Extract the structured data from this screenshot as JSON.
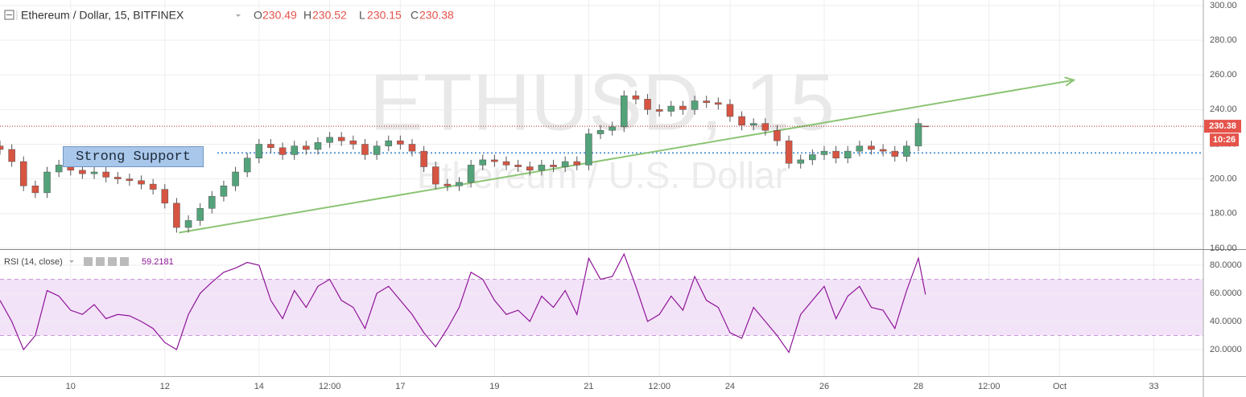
{
  "chart_data": {
    "type": "candlestick",
    "title": "Ethereum / Dollar, 15, BITFINEX",
    "watermark": "ETHUSD, 15",
    "watermark_subtitle": "Ethereum / U.S. Dollar",
    "ohlc_labels": [
      "O",
      "H",
      "L",
      "C"
    ],
    "x": [
      8.5,
      8.75,
      9,
      9.25,
      9.5,
      9.75,
      10,
      10.25,
      10.5,
      10.75,
      11,
      11.25,
      11.5,
      11.75,
      12,
      12.25,
      12.5,
      12.75,
      13,
      13.25,
      13.5,
      13.75,
      14,
      14.25,
      14.5,
      14.75,
      15,
      15.25,
      15.5,
      15.75,
      16,
      16.25,
      16.5,
      16.75,
      17,
      17.25,
      17.5,
      17.75,
      18,
      18.25,
      18.5,
      18.75,
      19,
      19.25,
      19.5,
      19.75,
      20,
      20.25,
      20.5,
      20.75,
      21,
      21.25,
      21.5,
      21.75,
      22,
      22.25,
      22.5,
      22.75,
      23,
      23.25,
      23.5,
      23.75,
      24,
      24.25,
      24.5,
      24.75,
      25,
      25.25,
      25.5,
      25.75,
      26,
      26.25,
      26.5,
      26.75,
      27,
      27.25,
      27.5,
      27.75,
      28,
      28.15
    ],
    "open": [
      219,
      217,
      210,
      196,
      192,
      204,
      208,
      205,
      203,
      204,
      201,
      200,
      199,
      197,
      194,
      186,
      172,
      176,
      183,
      190,
      196,
      204,
      212,
      220,
      218,
      214,
      219,
      217,
      221,
      224,
      222,
      220,
      214,
      219,
      222,
      220,
      216,
      207,
      197,
      196,
      198,
      208,
      211,
      210,
      208,
      207,
      205,
      208,
      207,
      210,
      208,
      226,
      228,
      230,
      248,
      246,
      240,
      239,
      242,
      240,
      245,
      244,
      243,
      236,
      231,
      232,
      228,
      222,
      209,
      211,
      214,
      216,
      212,
      216,
      219,
      217,
      216,
      213,
      219,
      230.49
    ],
    "high": [
      222,
      220,
      213,
      199,
      207,
      211,
      211,
      208,
      207,
      207,
      204,
      203,
      202,
      200,
      197,
      189,
      179,
      186,
      193,
      199,
      207,
      215,
      223,
      223,
      221,
      222,
      222,
      224,
      227,
      227,
      225,
      223,
      222,
      225,
      225,
      223,
      219,
      210,
      200,
      201,
      211,
      214,
      214,
      213,
      211,
      210,
      211,
      211,
      213,
      213,
      229,
      231,
      233,
      251,
      251,
      249,
      243,
      245,
      245,
      248,
      248,
      247,
      246,
      239,
      235,
      235,
      231,
      225,
      214,
      217,
      219,
      219,
      219,
      222,
      222,
      220,
      219,
      222,
      235,
      230.52
    ],
    "low": [
      214,
      207,
      193,
      189,
      189,
      201,
      202,
      200,
      200,
      198,
      197,
      196,
      194,
      191,
      183,
      169,
      169,
      173,
      180,
      187,
      193,
      201,
      209,
      215,
      211,
      211,
      214,
      214,
      218,
      219,
      217,
      211,
      211,
      216,
      217,
      213,
      204,
      194,
      193,
      193,
      195,
      205,
      207,
      205,
      204,
      202,
      202,
      204,
      204,
      205,
      205,
      223,
      225,
      227,
      243,
      237,
      236,
      236,
      237,
      237,
      241,
      240,
      233,
      228,
      228,
      225,
      219,
      206,
      206,
      208,
      211,
      209,
      209,
      213,
      214,
      213,
      210,
      210,
      216,
      230.15
    ],
    "close": [
      217,
      210,
      196,
      192,
      204,
      208,
      205,
      203,
      204,
      201,
      200,
      199,
      197,
      194,
      186,
      172,
      176,
      183,
      190,
      196,
      204,
      212,
      220,
      218,
      214,
      219,
      217,
      221,
      224,
      222,
      220,
      214,
      219,
      222,
      220,
      216,
      207,
      197,
      196,
      198,
      208,
      211,
      210,
      208,
      207,
      205,
      208,
      207,
      210,
      208,
      226,
      228,
      230,
      248,
      246,
      240,
      239,
      242,
      240,
      245,
      244,
      243,
      236,
      231,
      232,
      228,
      222,
      209,
      211,
      214,
      216,
      212,
      216,
      219,
      217,
      216,
      213,
      219,
      232,
      230.38
    ],
    "up_color": "#53a37a",
    "down_color": "#d75442",
    "last_price_color": "#e5534b",
    "countdown": "10:26",
    "xlim": [
      8.5,
      34.05
    ],
    "xticks": [
      10,
      12,
      14,
      {
        "value": 15.5,
        "label": "12:00"
      },
      17,
      19,
      21,
      {
        "value": 22.5,
        "label": "12:00"
      },
      24,
      26,
      28,
      {
        "value": 29.5,
        "label": "12:00"
      },
      {
        "value": 31,
        "label": "Oct"
      },
      33
    ],
    "ylim": [
      159.5,
      303.2
    ],
    "yticks": [
      {
        "value": 160,
        "label": "160.00"
      },
      {
        "value": 180,
        "label": "180.00"
      },
      {
        "value": 200,
        "label": "200.00"
      },
      {
        "value": 220,
        "label": "220.00"
      },
      {
        "value": 240,
        "label": "240.00"
      },
      {
        "value": 260,
        "label": "260.00"
      },
      {
        "value": 280,
        "label": "280.00"
      },
      {
        "value": 300,
        "label": "300.00"
      }
    ],
    "grid": true,
    "support_label": "Strong Support",
    "support_level": 215,
    "support_color": "#5b9bd5",
    "trendline": {
      "x": [
        12.3,
        31.3
      ],
      "y": [
        169,
        257
      ],
      "color": "#8cc474"
    },
    "indicator": {
      "type": "line",
      "name": "RSI (14, close)",
      "color": "#8e1599",
      "band_color": "#f3e3f8",
      "upper_band": 70,
      "lower_band": 30,
      "ylim": [
        1.1,
        90.9
      ],
      "yticks": [
        {
          "value": 20,
          "label": "20.0000"
        },
        {
          "value": 40,
          "label": "40.0000"
        },
        {
          "value": 60,
          "label": "60.0000"
        },
        {
          "value": 80,
          "label": "80.0000"
        }
      ],
      "values": [
        55,
        40,
        20,
        30,
        62,
        58,
        48,
        45,
        52,
        42,
        45,
        44,
        40,
        35,
        25,
        20,
        45,
        60,
        68,
        75,
        78,
        82,
        80,
        55,
        42,
        62,
        50,
        65,
        70,
        55,
        50,
        35,
        60,
        65,
        55,
        45,
        32,
        22,
        35,
        50,
        75,
        70,
        55,
        45,
        48,
        40,
        58,
        50,
        62,
        45,
        85,
        70,
        72,
        88,
        65,
        40,
        45,
        58,
        48,
        72,
        55,
        50,
        32,
        28,
        50,
        40,
        30,
        18,
        45,
        55,
        65,
        42,
        58,
        65,
        50,
        48,
        35,
        62,
        85,
        59.2181
      ]
    }
  }
}
